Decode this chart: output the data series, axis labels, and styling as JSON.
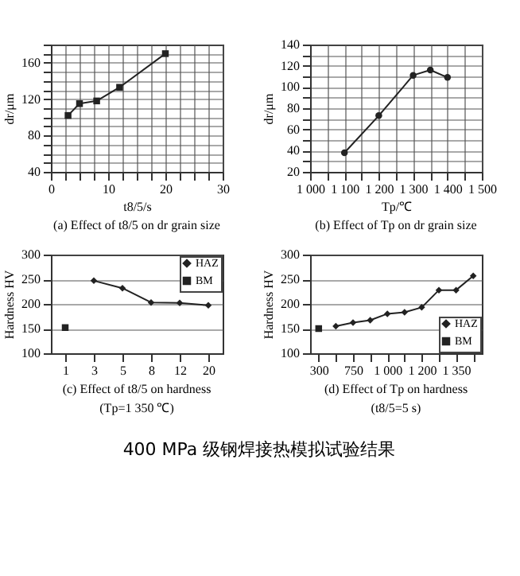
{
  "chart_data": [
    {
      "type": "line",
      "title": "(a) Effect of t8/5 on dr grain size",
      "xlabel": "t8/5/s",
      "ylabel": "dr/μm",
      "marker": "square",
      "grid": true,
      "x": [
        3,
        5,
        8,
        12,
        20
      ],
      "series": [
        {
          "color": "#222222",
          "values": [
            102,
            115,
            118,
            133,
            170
          ]
        }
      ],
      "xlim": [
        0,
        30
      ],
      "xticks": [
        0,
        {
          "value": 2.5,
          "label": null
        },
        {
          "value": 5,
          "label": null
        },
        {
          "value": 7.5,
          "label": null
        },
        10,
        {
          "value": 12.5,
          "label": null
        },
        {
          "value": 15,
          "label": null
        },
        {
          "value": 17.5,
          "label": null
        },
        20,
        {
          "value": 22.5,
          "label": null
        },
        {
          "value": 25,
          "label": null
        },
        {
          "value": 27.5,
          "label": null
        },
        30
      ],
      "ylim": [
        40,
        180
      ],
      "yticks": [
        40,
        {
          "value": 50,
          "label": null
        },
        {
          "value": 60,
          "label": null
        },
        {
          "value": 70,
          "label": null
        },
        80,
        {
          "value": 90,
          "label": null
        },
        {
          "value": 100,
          "label": null
        },
        {
          "value": 110,
          "label": null
        },
        120,
        {
          "value": 130,
          "label": null
        },
        {
          "value": 140,
          "label": null
        },
        {
          "value": 150,
          "label": null
        },
        160,
        {
          "value": 170,
          "label": null
        },
        {
          "value": 180,
          "label": null
        }
      ]
    },
    {
      "type": "line",
      "title": "(b) Effect of Tp on dr grain size",
      "xlabel": "Tp/℃",
      "ylabel": "dr/μm",
      "marker": "circle",
      "grid": true,
      "x": [
        1100,
        1200,
        1300,
        1350,
        1400
      ],
      "series": [
        {
          "color": "#222222",
          "values": [
            38,
            73,
            111,
            116,
            109
          ]
        }
      ],
      "xlim": [
        1000,
        1500
      ],
      "xticks": [
        {
          "value": 1000,
          "label": "1 000"
        },
        {
          "value": 1050,
          "label": null
        },
        {
          "value": 1100,
          "label": "1 100"
        },
        {
          "value": 1150,
          "label": null
        },
        {
          "value": 1200,
          "label": "1 200"
        },
        {
          "value": 1250,
          "label": null
        },
        {
          "value": 1300,
          "label": "1 300"
        },
        {
          "value": 1350,
          "label": null
        },
        {
          "value": 1400,
          "label": "1 400"
        },
        {
          "value": 1450,
          "label": null
        },
        {
          "value": 1500,
          "label": "1 500"
        }
      ],
      "ylim": [
        20,
        140
      ],
      "yticks": [
        20,
        {
          "value": 30,
          "label": null
        },
        40,
        {
          "value": 50,
          "label": null
        },
        60,
        {
          "value": 70,
          "label": null
        },
        80,
        {
          "value": 90,
          "label": null
        },
        100,
        {
          "value": 110,
          "label": null
        },
        120,
        {
          "value": 130,
          "label": null
        },
        140
      ]
    },
    {
      "type": "line",
      "title": "(c) Effect of t8/5 on hardness",
      "subtitle": "(Tp=1 350 ℃)",
      "ylabel": "Hardness HV",
      "grid": "y",
      "legend": "top right",
      "categories": [
        "1",
        "3",
        "5",
        "8",
        "12",
        "20"
      ],
      "series": [
        {
          "name": "HAZ",
          "color": "#222222",
          "marker": "diamond",
          "values": [
            null,
            247,
            232,
            203,
            202,
            197
          ]
        },
        {
          "name": "BM",
          "color": "#222222",
          "marker": "square",
          "values": [
            152,
            null,
            null,
            null,
            null,
            null
          ]
        }
      ],
      "ylim": [
        100,
        300
      ],
      "yticks": [
        100,
        150,
        200,
        250,
        300
      ]
    },
    {
      "type": "line",
      "title": "(d) Effect of Tp on hardness",
      "subtitle": "(t8/5=5 s)",
      "ylabel": "Hardness HV",
      "grid": "y",
      "legend": "bottom right",
      "categories": [
        "300",
        null,
        "750",
        null,
        "1 000",
        null,
        "1 200",
        null,
        "1 350",
        null
      ],
      "series": [
        {
          "name": "HAZ",
          "color": "#222222",
          "marker": "diamond",
          "values": [
            null,
            155,
            162,
            167,
            180,
            183,
            193,
            228,
            228,
            257
          ]
        },
        {
          "name": "BM",
          "color": "#222222",
          "marker": "square",
          "values": [
            150,
            null,
            null,
            null,
            null,
            null,
            null,
            null,
            null,
            null
          ]
        }
      ],
      "ylim": [
        100,
        300
      ],
      "yticks": [
        100,
        150,
        200,
        250,
        300
      ]
    },
    {
      "type": "other",
      "title": "400 MPa 级钢焊接热模拟试验结果"
    }
  ]
}
